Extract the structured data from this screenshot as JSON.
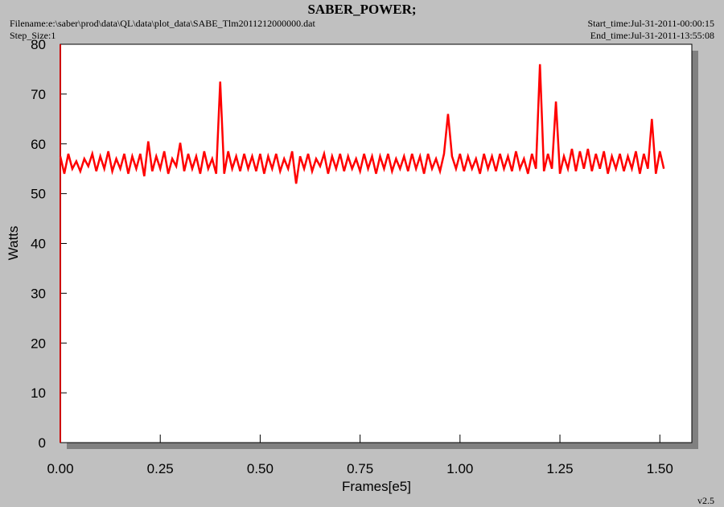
{
  "chart_data": {
    "type": "line",
    "title": "SABER_POWER;",
    "filename": "Filename:e:\\saber\\prod\\data\\QL\\data\\plot_data\\SABE_Tlm2011212000000.dat",
    "step_size": "Step_Size:1",
    "start_time": "Start_time:Jul-31-2011-00:00:15",
    "end_time": "End_time:Jul-31-2011-13:55:08",
    "version": "v2.5",
    "x_label": "Frames[e5]",
    "y_label": "Watts",
    "xlim": [
      0,
      1.58
    ],
    "ylim": [
      0,
      80
    ],
    "xticks": [
      {
        "value": 0,
        "label": "0.00"
      },
      {
        "value": 0.25,
        "label": "0.25"
      },
      {
        "value": 0.5,
        "label": "0.50"
      },
      {
        "value": 0.75,
        "label": "0.75"
      },
      {
        "value": 1,
        "label": "1.00"
      },
      {
        "value": 1.25,
        "label": "1.25"
      },
      {
        "value": 1.5,
        "label": "1.50"
      }
    ],
    "yticks": [
      0,
      10,
      20,
      30,
      40,
      50,
      60,
      70,
      80
    ],
    "x": [
      0,
      0.01,
      0.02,
      0.03,
      0.04,
      0.05,
      0.06,
      0.07,
      0.08,
      0.09,
      0.1,
      0.11,
      0.12,
      0.13,
      0.14,
      0.15,
      0.16,
      0.17,
      0.18,
      0.19,
      0.2,
      0.21,
      0.22,
      0.23,
      0.24,
      0.25,
      0.26,
      0.27,
      0.28,
      0.29,
      0.3,
      0.31,
      0.32,
      0.33,
      0.34,
      0.35,
      0.36,
      0.37,
      0.38,
      0.39,
      0.4,
      0.41,
      0.42,
      0.43,
      0.44,
      0.45,
      0.46,
      0.47,
      0.48,
      0.49,
      0.5,
      0.51,
      0.52,
      0.53,
      0.54,
      0.55,
      0.56,
      0.57,
      0.58,
      0.59,
      0.6,
      0.61,
      0.62,
      0.63,
      0.64,
      0.65,
      0.66,
      0.67,
      0.68,
      0.69,
      0.7,
      0.71,
      0.72,
      0.73,
      0.74,
      0.75,
      0.76,
      0.77,
      0.78,
      0.79,
      0.8,
      0.81,
      0.82,
      0.83,
      0.84,
      0.85,
      0.86,
      0.87,
      0.88,
      0.89,
      0.9,
      0.91,
      0.92,
      0.93,
      0.94,
      0.95,
      0.96,
      0.97,
      0.98,
      0.99,
      1,
      1.01,
      1.02,
      1.03,
      1.04,
      1.05,
      1.06,
      1.07,
      1.08,
      1.09,
      1.1,
      1.11,
      1.12,
      1.13,
      1.14,
      1.15,
      1.16,
      1.17,
      1.18,
      1.19,
      1.2,
      1.21,
      1.22,
      1.23,
      1.24,
      1.25,
      1.26,
      1.27,
      1.28,
      1.29,
      1.3,
      1.31,
      1.32,
      1.33,
      1.34,
      1.35,
      1.36,
      1.37,
      1.38,
      1.39,
      1.4,
      1.41,
      1.42,
      1.43,
      1.44,
      1.45,
      1.46,
      1.47,
      1.48,
      1.49,
      1.5,
      1.51
    ],
    "series": [
      {
        "color": "#ff0000",
        "values": [
          57.5,
          54,
          58,
          55,
          56.5,
          54.5,
          57,
          55.5,
          58,
          54.5,
          57.5,
          55,
          58.5,
          54.5,
          57,
          55,
          58,
          54,
          57.5,
          55,
          58,
          53.5,
          60.5,
          54.5,
          57.5,
          55,
          58.5,
          54,
          57,
          55.5,
          60.2,
          54.5,
          58,
          55,
          57.5,
          54,
          58.5,
          55,
          57,
          54,
          72.5,
          54,
          58.5,
          55,
          57.5,
          54.5,
          58,
          55,
          57.5,
          54.5,
          58,
          54,
          57.5,
          55,
          58,
          54.5,
          57,
          55,
          58.5,
          52,
          57.5,
          55,
          58,
          54.5,
          57,
          55.5,
          58,
          54,
          57.5,
          55,
          58,
          54.5,
          57.5,
          55,
          57,
          54.5,
          58,
          55,
          57.5,
          54,
          57.5,
          55,
          58,
          54.5,
          57,
          55,
          57.5,
          54.5,
          58,
          55,
          57.5,
          54,
          58,
          55,
          57,
          54.5,
          58,
          66,
          57.5,
          55,
          58,
          54.5,
          57.5,
          55,
          57,
          54,
          58,
          55,
          57.5,
          54.5,
          58,
          55,
          57.5,
          54.5,
          58.5,
          55,
          57,
          54,
          58,
          55,
          76,
          54.5,
          58,
          55,
          68.5,
          54,
          57.5,
          55,
          59,
          54.5,
          58.5,
          55,
          59,
          54.5,
          58,
          55,
          58.5,
          54,
          57.5,
          55,
          58,
          54.5,
          57.5,
          55,
          58.5,
          54,
          58,
          55,
          65,
          54,
          58.5,
          55
        ]
      }
    ]
  }
}
